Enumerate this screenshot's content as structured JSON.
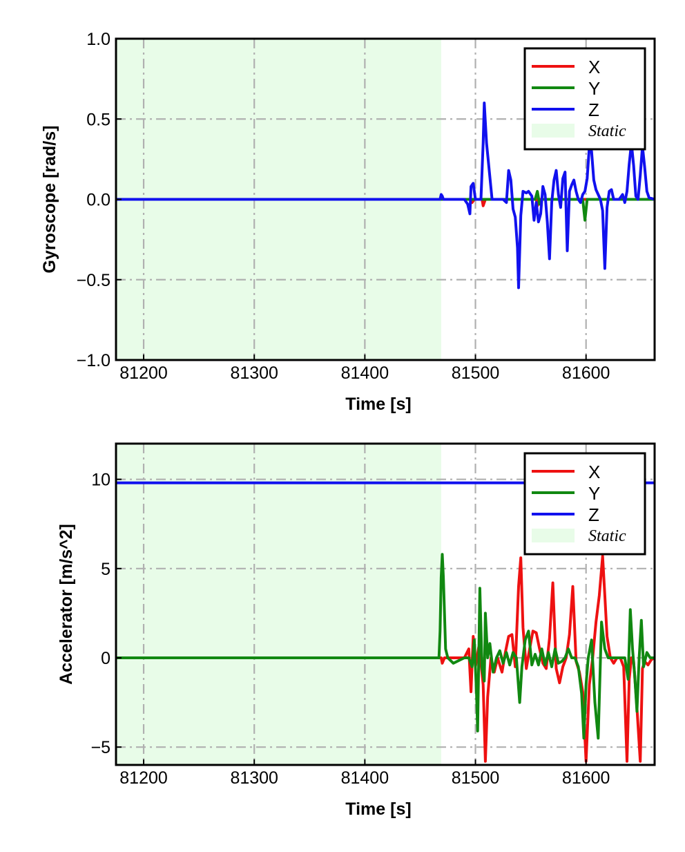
{
  "chart_data": [
    {
      "type": "line",
      "xlabel": "Time [s]",
      "ylabel": "Gyroscope [rad/s]",
      "xlim": [
        81175,
        81662
      ],
      "ylim": [
        -1.0,
        1.0
      ],
      "xticks": [
        81200,
        81300,
        81400,
        81500,
        81600
      ],
      "xtick_labels": [
        "81200",
        "81300",
        "81400",
        "81500",
        "81600"
      ],
      "yticks": [
        -1.0,
        -0.5,
        0.0,
        0.5,
        1.0
      ],
      "ytick_labels": [
        "−1.0",
        "−0.5",
        "0.0",
        "0.5",
        "1.0"
      ],
      "grid": true,
      "legend_position": "top-right",
      "static_region": {
        "label": "Static",
        "x": [
          81175,
          81469
        ],
        "color": "#e8fce8"
      },
      "series": [
        {
          "name": "X",
          "color": "#ee1111",
          "x": [
            81175,
            81469,
            81495,
            81497,
            81499,
            81503,
            81506,
            81507,
            81509,
            81520,
            81540,
            81555,
            81556,
            81558,
            81575,
            81590,
            81600,
            81620,
            81662
          ],
          "y": [
            0.0,
            0.0,
            0.0,
            -0.02,
            0.0,
            0.0,
            0.0,
            -0.04,
            0.0,
            0.0,
            0.0,
            0.0,
            -0.04,
            0.0,
            0.0,
            0.0,
            0.0,
            0.0,
            0.0
          ]
        },
        {
          "name": "Y",
          "color": "#118811",
          "x": [
            81175,
            81469,
            81495,
            81520,
            81554,
            81556,
            81558,
            81560,
            81575,
            81597,
            81599,
            81601,
            81603,
            81620,
            81662
          ],
          "y": [
            0.0,
            0.0,
            0.0,
            0.0,
            0.0,
            0.05,
            -0.03,
            0.0,
            0.0,
            0.0,
            -0.13,
            0.0,
            0.0,
            0.0,
            0.0
          ]
        },
        {
          "name": "Z",
          "color": "#1111ee",
          "x": [
            81175,
            81468,
            81469,
            81470,
            81471,
            81490,
            81493,
            81495,
            81496,
            81498,
            81500,
            81505,
            81507,
            81508,
            81510,
            81515,
            81525,
            81528,
            81530,
            81532,
            81534,
            81536,
            81538,
            81539,
            81541,
            81543,
            81546,
            81548,
            81551,
            81553,
            81555,
            81557,
            81559,
            81561,
            81563,
            81565,
            81567,
            81569,
            81571,
            81573,
            81575,
            81577,
            81579,
            81581,
            81583,
            81585,
            81587,
            81589,
            81591,
            81593,
            81595,
            81597,
            81599,
            81601,
            81603,
            81605,
            81607,
            81609,
            81611,
            81613,
            81615,
            81617,
            81619,
            81621,
            81623,
            81625,
            81630,
            81633,
            81635,
            81637,
            81639,
            81641,
            81643,
            81645,
            81647,
            81649,
            81651,
            81653,
            81655,
            81657,
            81662
          ],
          "y": [
            0.0,
            0.0,
            0.03,
            0.02,
            0.0,
            0.0,
            -0.03,
            -0.09,
            0.08,
            0.1,
            0.0,
            0.0,
            0.35,
            0.6,
            0.35,
            0.0,
            0.0,
            -0.02,
            0.18,
            0.12,
            -0.06,
            -0.11,
            -0.3,
            -0.55,
            -0.1,
            0.05,
            0.04,
            0.05,
            0.02,
            -0.13,
            -0.02,
            -0.14,
            -0.09,
            0.08,
            0.03,
            -0.14,
            -0.37,
            -0.02,
            0.12,
            0.18,
            0.03,
            -0.05,
            0.13,
            0.17,
            -0.32,
            0.05,
            0.09,
            0.12,
            0.05,
            0.0,
            -0.02,
            0.03,
            0.05,
            0.13,
            0.33,
            0.3,
            0.12,
            0.06,
            0.03,
            0.0,
            -0.07,
            -0.43,
            -0.05,
            0.05,
            0.06,
            0.0,
            0.0,
            0.03,
            -0.02,
            0.05,
            0.22,
            0.35,
            0.21,
            0.02,
            0.0,
            0.15,
            0.33,
            0.2,
            0.05,
            0.01,
            0.0
          ]
        }
      ]
    },
    {
      "type": "line",
      "xlabel": "Time [s]",
      "ylabel": "Accelerator [m/s^2]",
      "xlim": [
        81175,
        81662
      ],
      "ylim": [
        -6.0,
        12.0
      ],
      "xticks": [
        81200,
        81300,
        81400,
        81500,
        81600
      ],
      "xtick_labels": [
        "81200",
        "81300",
        "81400",
        "81500",
        "81600"
      ],
      "yticks": [
        -5,
        0,
        5,
        10
      ],
      "ytick_labels": [
        "−5",
        "0",
        "5",
        "10"
      ],
      "grid": true,
      "legend_position": "top-right",
      "static_region": {
        "label": "Static",
        "x": [
          81175,
          81469
        ],
        "color": "#e8fce8"
      },
      "series": [
        {
          "name": "Z",
          "color": "#1111ee",
          "x": [
            81175,
            81662
          ],
          "y": [
            9.8,
            9.8
          ]
        },
        {
          "name": "X",
          "color": "#ee1111",
          "x": [
            81175,
            81469,
            81470,
            81472,
            81490,
            81494,
            81496,
            81498,
            81500,
            81503,
            81505,
            81507,
            81509,
            81511,
            81514,
            81517,
            81520,
            81524,
            81527,
            81530,
            81533,
            81536,
            81539,
            81541,
            81543,
            81546,
            81549,
            81552,
            81555,
            81558,
            81561,
            81564,
            81567,
            81570,
            81573,
            81576,
            81579,
            81582,
            81585,
            81588,
            81591,
            81594,
            81597,
            81600,
            81603,
            81606,
            81609,
            81612,
            81615,
            81617,
            81619,
            81622,
            81625,
            81628,
            81631,
            81634,
            81637,
            81639,
            81641,
            81643,
            81646,
            81649,
            81651,
            81653,
            81656,
            81659,
            81662
          ],
          "y": [
            0.0,
            0.0,
            -0.3,
            0.0,
            0.0,
            0.5,
            -1.9,
            1.2,
            -0.5,
            0.6,
            -0.3,
            -1.5,
            -5.8,
            -2.2,
            0.0,
            -0.8,
            0.0,
            -0.8,
            0.3,
            1.2,
            1.3,
            -0.5,
            4.0,
            5.6,
            1.7,
            -0.6,
            0.5,
            1.5,
            1.4,
            0.5,
            -0.3,
            -0.6,
            1.1,
            4.2,
            -0.6,
            -1.4,
            -0.5,
            0.0,
            1.3,
            4.0,
            -0.2,
            -0.8,
            -1.9,
            -5.8,
            -1.5,
            0.0,
            2.0,
            3.5,
            5.7,
            3.5,
            1.2,
            0.0,
            -0.3,
            0.0,
            0.0,
            -0.5,
            -5.8,
            -1.2,
            0.0,
            -0.2,
            -2.8,
            -5.8,
            -0.6,
            -0.2,
            -0.4,
            -0.1,
            0.0
          ]
        },
        {
          "name": "Y",
          "color": "#118811",
          "x": [
            81175,
            81467,
            81468,
            81469,
            81470,
            81471,
            81473,
            81475,
            81480,
            81490,
            81494,
            81497,
            81499,
            81501,
            81502,
            81504,
            81506,
            81508,
            81509,
            81511,
            81513,
            81516,
            81519,
            81522,
            81525,
            81528,
            81531,
            81534,
            81537,
            81540,
            81542,
            81545,
            81548,
            81551,
            81554,
            81557,
            81560,
            81563,
            81566,
            81569,
            81572,
            81575,
            81578,
            81581,
            81584,
            81587,
            81590,
            81593,
            81596,
            81598,
            81600,
            81602,
            81605,
            81608,
            81611,
            81614,
            81617,
            81620,
            81625,
            81630,
            81635,
            81638,
            81640,
            81642,
            81644,
            81646,
            81648,
            81650,
            81652,
            81655,
            81658,
            81662
          ],
          "y": [
            0.0,
            0.0,
            1.5,
            4.5,
            5.8,
            4.5,
            0.5,
            0.0,
            -0.3,
            0.0,
            0.0,
            -0.5,
            1.0,
            -2.0,
            -4.1,
            3.9,
            -0.6,
            -1.3,
            2.5,
            0.0,
            0.8,
            -0.8,
            0.0,
            0.4,
            -0.3,
            0.3,
            -0.4,
            0.3,
            0.0,
            -2.5,
            -0.5,
            1.0,
            1.5,
            -0.4,
            0.2,
            -0.4,
            0.5,
            -0.4,
            0.3,
            -0.5,
            0.5,
            -0.3,
            -0.2,
            0.0,
            0.5,
            0.0,
            0.0,
            -0.5,
            -2.0,
            -4.5,
            -1.5,
            0.0,
            1.0,
            -2.5,
            -4.5,
            2.0,
            0.5,
            0.0,
            0.0,
            0.0,
            0.0,
            -1.2,
            2.7,
            0.5,
            -1.0,
            -3.0,
            0.0,
            2.1,
            -0.5,
            0.3,
            0.0,
            0.0
          ]
        }
      ]
    }
  ]
}
